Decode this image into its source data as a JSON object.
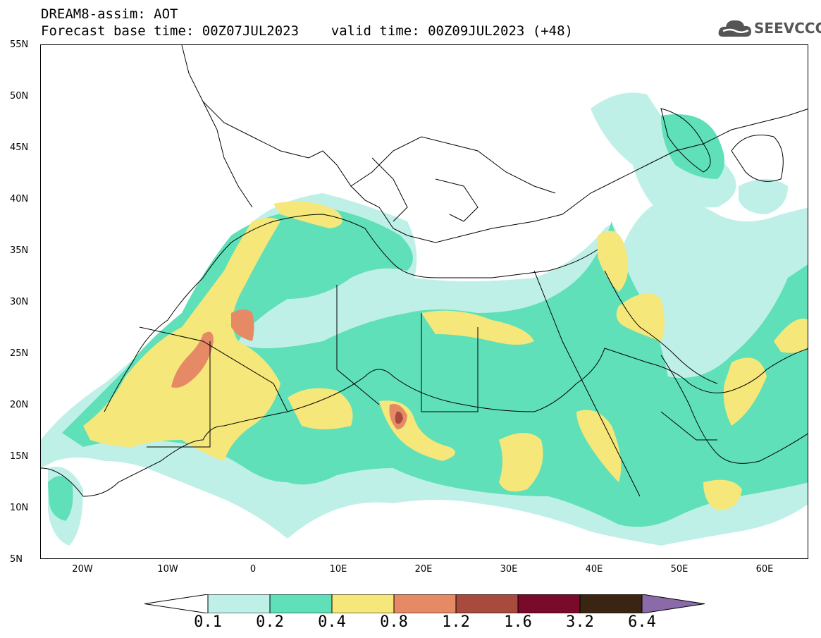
{
  "header": {
    "title_line1": "DREAM8-assim: AOT",
    "title_line2": "Forecast base time: 00Z07JUL2023    valid time: 00Z09JUL2023 (+48)"
  },
  "logo": {
    "text": "SEEVCCC",
    "icon": "cloud-icon"
  },
  "map": {
    "lat_labels": [
      "55N",
      "50N",
      "45N",
      "40N",
      "35N",
      "30N",
      "25N",
      "20N",
      "15N",
      "10N",
      "5N"
    ],
    "lon_labels": [
      "20W",
      "10W",
      "0",
      "10E",
      "20E",
      "30E",
      "40E",
      "50E",
      "60E"
    ],
    "colors": {
      "c0.1": "#bff0e8",
      "c0.2": "#5fe0b8",
      "c0.4": "#f5e77a",
      "c0.8": "#e68a66",
      "c1.2": "#a84a3e",
      "c1.6": "#7a0a2a",
      "c3.2": "#3a2412",
      "c6.4": "#8a6aa8",
      "coast": "#000000"
    }
  },
  "colorbar": {
    "labels": [
      "0.1",
      "0.2",
      "0.4",
      "0.8",
      "1.2",
      "1.6",
      "3.2",
      "6.4"
    ]
  }
}
